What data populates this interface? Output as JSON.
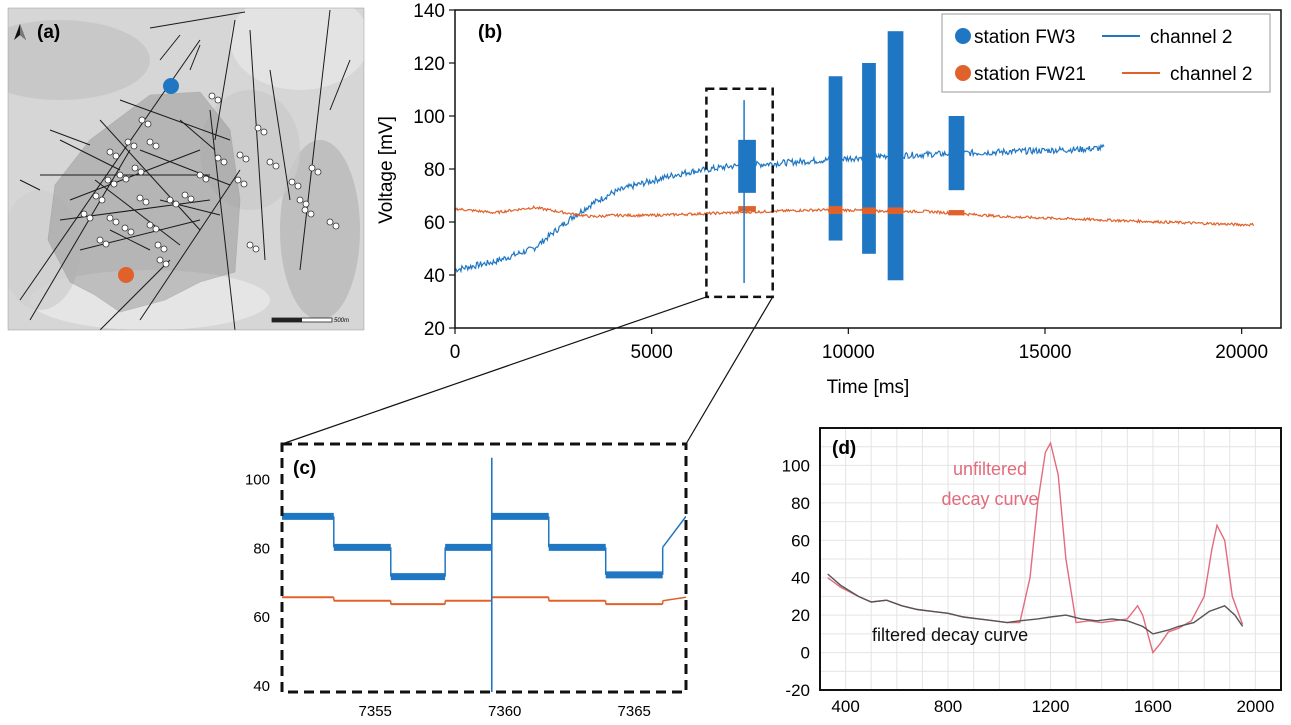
{
  "colors": {
    "fw3": "#1f77c4",
    "fw21": "#e0622a",
    "unfiltered": "#e26b7d",
    "filtered": "#555555",
    "fault": "#1a1a1a",
    "map_bg": "#d6d6d6",
    "survey_area": "#8f8f8f"
  },
  "panel_a": {
    "label": "(a)",
    "north_icon": "north-arrow-icon",
    "scale_label": "500m"
  },
  "chart_data": [
    {
      "id": "b",
      "type": "line",
      "panel_label": "(b)",
      "xlabel": "Time [ms]",
      "ylabel": "Voltage [mV]",
      "xlim": [
        0,
        21000
      ],
      "ylim": [
        20,
        140
      ],
      "xticks": [
        0,
        5000,
        10000,
        15000,
        20000
      ],
      "xtick_labels": [
        "0",
        "5000",
        "10000",
        "15000",
        "20000"
      ],
      "yticks": [
        20,
        40,
        60,
        80,
        100,
        120,
        140
      ],
      "ytick_labels": [
        "20",
        "40",
        "60",
        "80",
        "100",
        "120",
        "140"
      ],
      "legend_position": "top-right",
      "legend": [
        {
          "marker": "station FW3",
          "line": "channel 2",
          "color": "fw3"
        },
        {
          "marker": "station FW21",
          "line": "channel 2",
          "color": "fw21"
        }
      ],
      "series": [
        {
          "name": "station FW3 channel 2",
          "color": "fw3",
          "x": [
            0,
            1000,
            2000,
            2500,
            3000,
            3500,
            4000,
            4500,
            5000,
            5500,
            6000,
            6500,
            7000,
            7500,
            8000,
            9000,
            10000,
            11000,
            12000,
            13000,
            14000,
            15000,
            16000,
            16500
          ],
          "y": [
            42,
            45,
            50,
            56,
            62,
            67,
            71,
            73.5,
            75.5,
            77.5,
            79,
            80,
            81,
            81.5,
            82,
            83,
            84,
            85,
            85.5,
            86,
            86.5,
            87,
            87.5,
            88
          ]
        },
        {
          "name": "station FW21 channel 2",
          "color": "fw21",
          "x": [
            0,
            1000,
            2000,
            3000,
            3500,
            4000,
            5000,
            6000,
            7000,
            8000,
            9000,
            10000,
            11000,
            12000,
            13000,
            14000,
            15000,
            16000,
            17000,
            18000,
            19000,
            20000,
            20300
          ],
          "y": [
            65,
            63.5,
            65.5,
            63,
            62,
            62.5,
            62.5,
            63,
            63.5,
            64,
            64.5,
            64.5,
            64,
            64,
            63,
            62,
            61.5,
            61,
            60.5,
            60,
            59.5,
            59,
            59
          ]
        }
      ],
      "bursts_fw3": [
        {
          "x0": 7200,
          "x1": 7650,
          "ymin": 71,
          "ymax": 91
        },
        {
          "x0": 9500,
          "x1": 9850,
          "ymin": 53,
          "ymax": 115
        },
        {
          "x0": 10350,
          "x1": 10700,
          "ymin": 48,
          "ymax": 120
        },
        {
          "x0": 11000,
          "x1": 11400,
          "ymin": 38,
          "ymax": 132
        },
        {
          "x0": 12550,
          "x1": 12950,
          "ymin": 72,
          "ymax": 100
        }
      ],
      "spike_fw3": {
        "x": 7350,
        "ymin": 37,
        "ymax": 106
      },
      "bursts_fw21": [
        {
          "x0": 7200,
          "x1": 7650,
          "ymin": 64,
          "ymax": 66
        },
        {
          "x0": 9500,
          "x1": 9850,
          "ymin": 63,
          "ymax": 66
        },
        {
          "x0": 10350,
          "x1": 10700,
          "ymin": 63,
          "ymax": 65.5
        },
        {
          "x0": 11000,
          "x1": 11400,
          "ymin": 63,
          "ymax": 65.5
        },
        {
          "x0": 12550,
          "x1": 12950,
          "ymin": 62.5,
          "ymax": 64.5
        }
      ],
      "zoom_box": {
        "x0": 6900,
        "x1": 7950,
        "ymin": 34,
        "ymax": 108
      }
    },
    {
      "id": "c",
      "type": "line",
      "panel_label": "(c)",
      "xlim": [
        7351.4,
        7367
      ],
      "ylim": [
        38,
        110
      ],
      "xticks": [
        7355,
        7360,
        7365
      ],
      "xtick_labels": [
        "7355",
        "7360",
        "7365"
      ],
      "yticks": [
        40,
        60,
        80,
        100
      ],
      "ytick_labels": [
        "40",
        "60",
        "80",
        "100"
      ],
      "series": [
        {
          "name": "station FW3",
          "color": "fw3",
          "x": [
            7351.4,
            7353.4,
            7353.4,
            7355.6,
            7355.6,
            7357.7,
            7357.7,
            7359.5,
            7359.5,
            7361.7,
            7361.7,
            7363.9,
            7363.9,
            7366.1,
            7366.1,
            7367
          ],
          "y": [
            89,
            89,
            80,
            80,
            71.5,
            71.5,
            80,
            80,
            89,
            89,
            80,
            80,
            72,
            72,
            80,
            89
          ]
        },
        {
          "name": "station FW21",
          "color": "fw21",
          "x": [
            7351.4,
            7353.4,
            7353.4,
            7355.6,
            7355.6,
            7357.7,
            7357.7,
            7359.5,
            7359.5,
            7361.7,
            7361.7,
            7363.9,
            7363.9,
            7366.1,
            7366.1,
            7367
          ],
          "y": [
            65.5,
            65.5,
            64.5,
            64.5,
            63.5,
            63.5,
            64.5,
            64.5,
            65.5,
            65.5,
            64.5,
            64.5,
            63.5,
            63.5,
            64.5,
            65.5
          ]
        }
      ],
      "spike_fw3": {
        "x": 7359.5,
        "ymin": 36,
        "ymax": 106
      }
    },
    {
      "id": "d",
      "type": "line",
      "panel_label": "(d)",
      "xlim": [
        300,
        2100
      ],
      "ylim": [
        -20,
        120
      ],
      "xticks": [
        400,
        800,
        1200,
        1600,
        2000
      ],
      "xtick_labels": [
        "400",
        "800",
        "1200",
        "1600",
        "2000"
      ],
      "yticks": [
        -20,
        0,
        20,
        40,
        60,
        80,
        100
      ],
      "ytick_labels": [
        "-20",
        "0",
        "20",
        "40",
        "60",
        "80",
        "100"
      ],
      "grid": true,
      "annotations": {
        "unfiltered_line1": "unfiltered",
        "unfiltered_line2": "decay curve",
        "filtered": "filtered decay curve"
      },
      "series": [
        {
          "name": "unfiltered decay curve",
          "color": "unfiltered",
          "x": [
            330,
            380,
            450,
            500,
            560,
            620,
            680,
            740,
            800,
            860,
            920,
            980,
            1030,
            1080,
            1120,
            1150,
            1180,
            1200,
            1230,
            1260,
            1300,
            1350,
            1400,
            1450,
            1500,
            1540,
            1560,
            1600,
            1630,
            1660,
            1700,
            1750,
            1800,
            1830,
            1850,
            1880,
            1910,
            1950
          ],
          "y": [
            40,
            35,
            30,
            27,
            28,
            25,
            23,
            22,
            21,
            19,
            18,
            17,
            16,
            16,
            40,
            80,
            107,
            112,
            95,
            50,
            16,
            17,
            16,
            17,
            18,
            25,
            20,
            0,
            5,
            11,
            13,
            17,
            30,
            55,
            68,
            60,
            30,
            15
          ]
        },
        {
          "name": "filtered decay curve",
          "color": "filtered",
          "x": [
            330,
            380,
            450,
            500,
            560,
            620,
            680,
            740,
            800,
            860,
            920,
            980,
            1030,
            1080,
            1150,
            1200,
            1260,
            1320,
            1380,
            1440,
            1500,
            1560,
            1600,
            1660,
            1700,
            1760,
            1820,
            1880,
            1920,
            1950
          ],
          "y": [
            42,
            36,
            30,
            27,
            28,
            25,
            23,
            22,
            21,
            19,
            18,
            17,
            16,
            17,
            18,
            19,
            20,
            18,
            17,
            18,
            17,
            14,
            10,
            12,
            14,
            16,
            22,
            25,
            20,
            14
          ]
        }
      ]
    }
  ]
}
